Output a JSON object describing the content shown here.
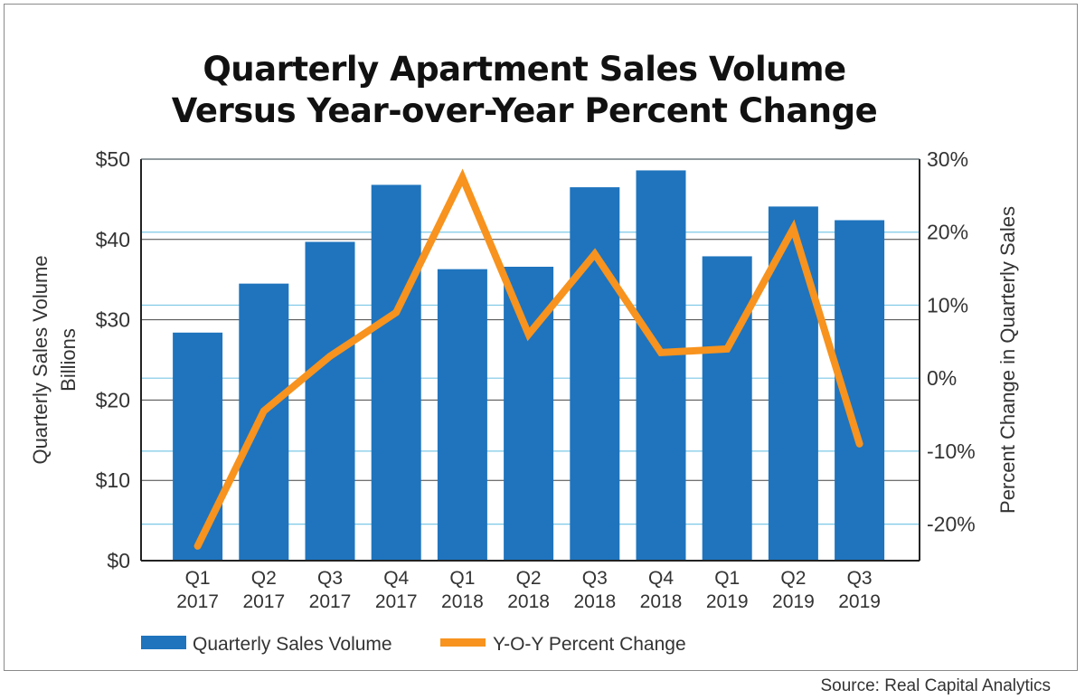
{
  "source": "Source: Real Capital Analytics",
  "chart_data": {
    "type": "bar",
    "title_lines": [
      "Quarterly Apartment Sales Volume",
      "Versus Year-over-Year Percent Change"
    ],
    "categories": [
      [
        "Q1",
        "2017"
      ],
      [
        "Q2",
        "2017"
      ],
      [
        "Q3",
        "2017"
      ],
      [
        "Q4",
        "2017"
      ],
      [
        "Q1",
        "2018"
      ],
      [
        "Q2",
        "2018"
      ],
      [
        "Q3",
        "2018"
      ],
      [
        "Q4",
        "2018"
      ],
      [
        "Q1",
        "2019"
      ],
      [
        "Q2",
        "2019"
      ],
      [
        "Q3",
        "2019"
      ]
    ],
    "series": [
      {
        "name": "Quarterly Sales Volume",
        "type": "bar",
        "axis": "left",
        "color": "#1f74bd",
        "values": [
          28.4,
          34.5,
          39.7,
          46.8,
          36.3,
          36.6,
          46.5,
          48.6,
          37.9,
          44.1,
          42.4
        ]
      },
      {
        "name": "Y-O-Y Percent Change",
        "type": "line",
        "axis": "right",
        "color": "#f7931e",
        "values": [
          -23.0,
          -4.5,
          3.0,
          9.0,
          27.5,
          6.0,
          17.0,
          3.5,
          4.0,
          20.5,
          -9.0
        ]
      }
    ],
    "y_left": {
      "label_lines": [
        "Quarterly Sales Volume",
        "Billions"
      ],
      "ylim": [
        0,
        50
      ],
      "ticks": [
        0,
        10,
        20,
        30,
        40,
        50
      ],
      "tick_labels": [
        "$0",
        "$10",
        "$20",
        "$30",
        "$40",
        "$50"
      ]
    },
    "y_right": {
      "label": "Percent Change in Quarterly Sales",
      "ylim": [
        -25,
        30
      ],
      "ticks": [
        -20,
        -10,
        0,
        10,
        20,
        30
      ],
      "tick_labels": [
        "-20%",
        "-10%",
        "0%",
        "10%",
        "20%",
        "30%"
      ]
    },
    "grid": true,
    "legend_position": "bottom-left"
  }
}
